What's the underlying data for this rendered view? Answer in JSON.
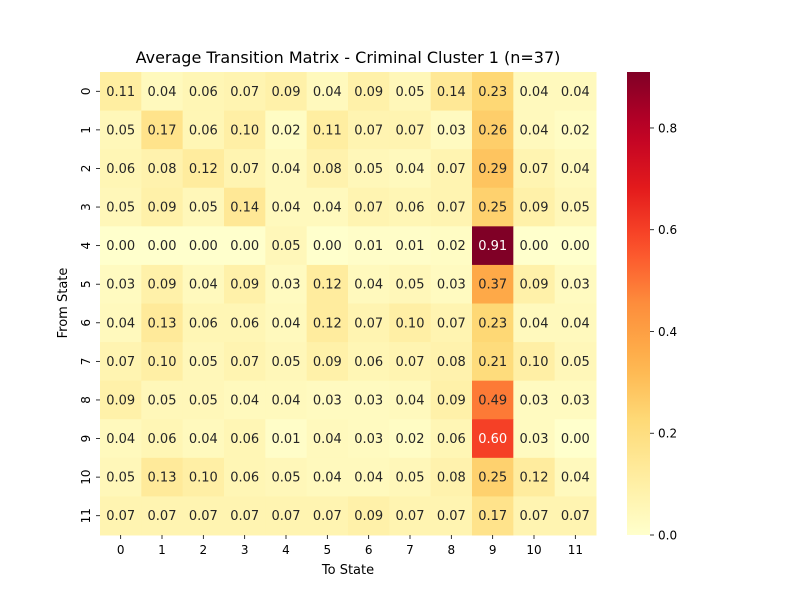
{
  "chart_data": {
    "type": "heatmap",
    "title": "Average Transition Matrix - Criminal Cluster 1 (n=37)",
    "xlabel": "To State",
    "ylabel": "From State",
    "x_categories": [
      "0",
      "1",
      "2",
      "3",
      "4",
      "5",
      "6",
      "7",
      "8",
      "9",
      "10",
      "11"
    ],
    "y_categories": [
      "0",
      "1",
      "2",
      "3",
      "4",
      "5",
      "6",
      "7",
      "8",
      "9",
      "10",
      "11"
    ],
    "values": [
      [
        0.11,
        0.04,
        0.06,
        0.07,
        0.09,
        0.04,
        0.09,
        0.05,
        0.14,
        0.23,
        0.04,
        0.04
      ],
      [
        0.05,
        0.17,
        0.06,
        0.1,
        0.02,
        0.11,
        0.07,
        0.07,
        0.03,
        0.26,
        0.04,
        0.02
      ],
      [
        0.06,
        0.08,
        0.12,
        0.07,
        0.04,
        0.08,
        0.05,
        0.04,
        0.07,
        0.29,
        0.07,
        0.04
      ],
      [
        0.05,
        0.09,
        0.05,
        0.14,
        0.04,
        0.04,
        0.07,
        0.06,
        0.07,
        0.25,
        0.09,
        0.05
      ],
      [
        0.0,
        0.0,
        0.0,
        0.0,
        0.05,
        0.0,
        0.01,
        0.01,
        0.02,
        0.91,
        0.0,
        0.0
      ],
      [
        0.03,
        0.09,
        0.04,
        0.09,
        0.03,
        0.12,
        0.04,
        0.05,
        0.03,
        0.37,
        0.09,
        0.03
      ],
      [
        0.04,
        0.13,
        0.06,
        0.06,
        0.04,
        0.12,
        0.07,
        0.1,
        0.07,
        0.23,
        0.04,
        0.04
      ],
      [
        0.07,
        0.1,
        0.05,
        0.07,
        0.05,
        0.09,
        0.06,
        0.07,
        0.08,
        0.21,
        0.1,
        0.05
      ],
      [
        0.09,
        0.05,
        0.05,
        0.04,
        0.04,
        0.03,
        0.03,
        0.04,
        0.09,
        0.49,
        0.03,
        0.03
      ],
      [
        0.04,
        0.06,
        0.04,
        0.06,
        0.01,
        0.04,
        0.03,
        0.02,
        0.06,
        0.6,
        0.03,
        0.0
      ],
      [
        0.05,
        0.13,
        0.1,
        0.06,
        0.05,
        0.04,
        0.04,
        0.05,
        0.08,
        0.25,
        0.12,
        0.04
      ],
      [
        0.07,
        0.07,
        0.07,
        0.07,
        0.07,
        0.07,
        0.09,
        0.07,
        0.07,
        0.17,
        0.07,
        0.07
      ]
    ],
    "colormap": "YlOrRd",
    "vmin": 0.0,
    "vmax": 0.91,
    "colorbar_ticks": [
      "0.0",
      "0.2",
      "0.4",
      "0.6",
      "0.8"
    ],
    "annotations": "cell values, 2 decimals",
    "grid": false,
    "colorbar_placement": "right"
  }
}
